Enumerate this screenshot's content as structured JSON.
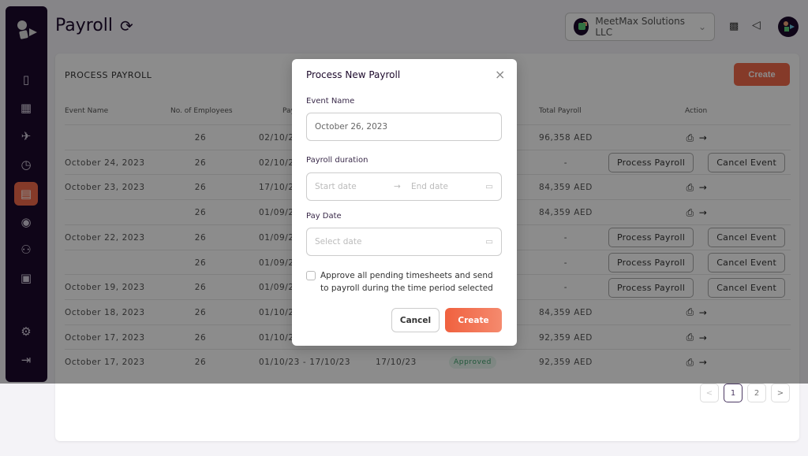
{
  "header": {
    "title": "Payroll",
    "company": "MeetMax Solutions LLC"
  },
  "sidebar": {
    "items": [
      "dashboard",
      "calendar",
      "travel",
      "timer",
      "payroll",
      "user-profile",
      "team",
      "reports"
    ],
    "bottom": [
      "settings",
      "logout"
    ],
    "active": "payroll"
  },
  "card": {
    "title": "PROCESS PAYROLL",
    "create_label": "Create"
  },
  "table": {
    "headers": [
      "Event Name",
      "No. of Employees",
      "Pay",
      "Total Payroll",
      "Action"
    ],
    "rows": [
      {
        "event": "",
        "employees": "26",
        "duration": "02/10/23",
        "pay_date": "",
        "status": "",
        "total": "96,358 AED",
        "action": "icons"
      },
      {
        "event": "October 24, 2023",
        "employees": "26",
        "duration": "02/10/23",
        "pay_date": "",
        "status": "",
        "total": "-",
        "action": "buttons"
      },
      {
        "event": "October 23, 2023",
        "employees": "26",
        "duration": "17/10/23",
        "pay_date": "",
        "status": "",
        "total": "84,359 AED",
        "action": "icons"
      },
      {
        "event": "",
        "employees": "26",
        "duration": "01/09/23",
        "pay_date": "",
        "status": "",
        "total": "84,359 AED",
        "action": "icons"
      },
      {
        "event": "October 22, 2023",
        "employees": "26",
        "duration": "01/09/23",
        "pay_date": "",
        "status": "",
        "total": "-",
        "action": "buttons"
      },
      {
        "event": "",
        "employees": "26",
        "duration": "01/09/23",
        "pay_date": "",
        "status": "",
        "total": "-",
        "action": "buttons"
      },
      {
        "event": "October 19, 2023",
        "employees": "26",
        "duration": "01/09/23",
        "pay_date": "",
        "status": "",
        "total": "-",
        "action": "buttons"
      },
      {
        "event": "October 18, 2023",
        "employees": "26",
        "duration": "01/10/23",
        "pay_date": "",
        "status": "",
        "total": "84,359 AED",
        "action": "icons"
      },
      {
        "event": "October 17, 2023",
        "employees": "26",
        "duration": "01/10/23",
        "pay_date": "",
        "status": "",
        "total": "92,359 AED",
        "action": "icons"
      },
      {
        "event": "October 17, 2023",
        "employees": "26",
        "duration": "01/10/23 - 17/10/23",
        "pay_date": "17/10/23",
        "status": "Approved",
        "total": "92,359 AED",
        "action": "icons"
      }
    ],
    "process_label": "Process Payroll",
    "cancel_event_label": "Cancel Event"
  },
  "pagination": {
    "prev": "<",
    "pages": [
      "1",
      "2"
    ],
    "current": "1",
    "next": ">"
  },
  "modal": {
    "title": "Process New Payroll",
    "event_name_label": "Event Name",
    "event_name_value": "October 26, 2023",
    "duration_label": "Payroll duration",
    "start_placeholder": "Start date",
    "end_placeholder": "End date",
    "pay_date_label": "Pay Date",
    "pay_date_placeholder": "Select date",
    "checkbox_label": "Approve all pending timesheets and send to payroll during the time period selected",
    "checkbox_checked": false,
    "cancel_label": "Cancel",
    "create_label": "Create"
  },
  "colors": {
    "accent": "#f26a4b",
    "sidebar": "#1d0a2c",
    "approved": "#3f9f6c"
  }
}
